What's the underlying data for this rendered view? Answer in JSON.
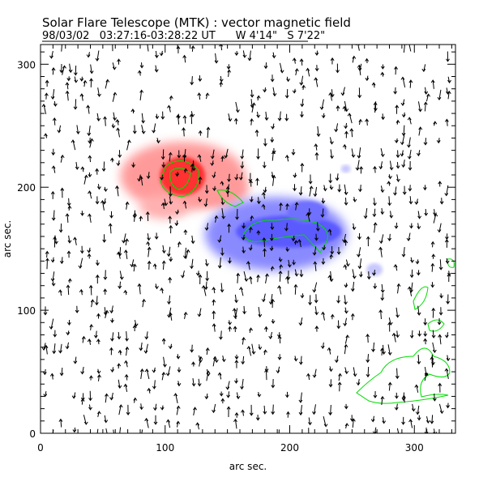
{
  "chart_data": {
    "type": "heatmap",
    "title": "Solar Flare Telescope (MTK) : vector magnetic field",
    "subtitle": "98/03/02   03:27:16-03:28:22 UT      W 4'14\"   S 7'22\"",
    "xlabel": "arc sec.",
    "ylabel": "arc sec.",
    "xlim": [
      0,
      333
    ],
    "ylim": [
      0,
      316
    ],
    "xticks": [
      0,
      100,
      200,
      300
    ],
    "yticks": [
      0,
      100,
      200,
      300
    ],
    "grid": false,
    "colors": {
      "positive": "#ff2020",
      "negative": "#3030ff",
      "contour": "#00dd00",
      "vector": "#000000"
    },
    "regions": [
      {
        "name": "positive-polarity",
        "center": [
          114,
          209
        ],
        "radius": [
          50,
          28
        ]
      },
      {
        "name": "negative-polarity",
        "center": [
          189,
          162
        ],
        "radius": [
          60,
          30
        ]
      }
    ]
  }
}
